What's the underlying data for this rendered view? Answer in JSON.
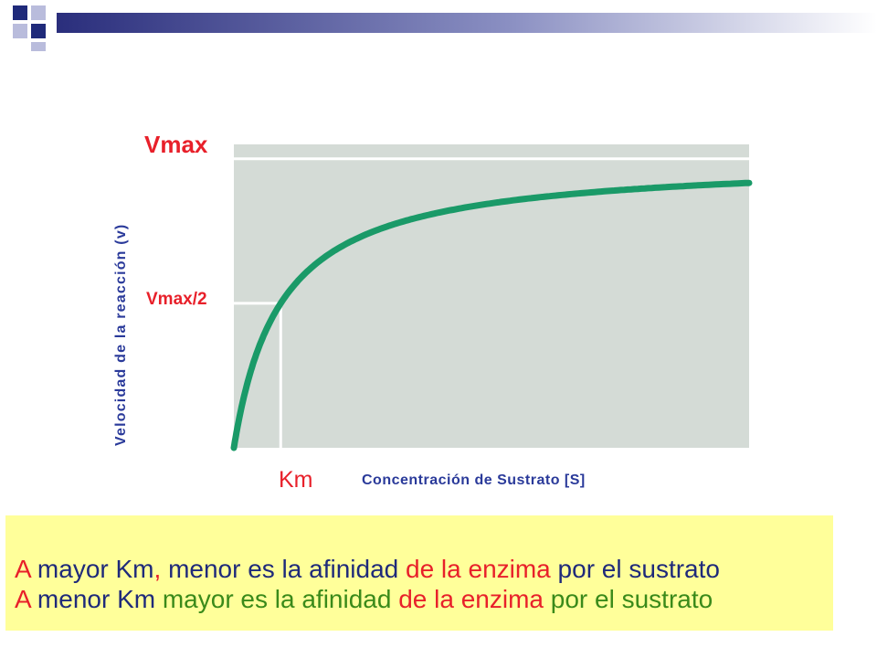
{
  "chart_data": {
    "type": "line",
    "title": "",
    "xlabel": "Concentración de Sustrato [S]",
    "ylabel": "Velocidad de la reacción (v)",
    "y_markers": [
      {
        "label": "Vmax",
        "value": 1.0
      },
      {
        "label": "Vmax/2",
        "value": 0.5
      }
    ],
    "x_markers": [
      {
        "label": "Km",
        "value": 1.0
      }
    ],
    "curve": {
      "equation": "v = Vmax*[S]/(Km+[S])",
      "Vmax": 1.0,
      "Km": 1.0
    },
    "xlim": [
      0,
      11
    ],
    "ylim": [
      0,
      1.05
    ],
    "colors": {
      "curve": "#1a9a68",
      "plot_bg": "#d4dbd6",
      "markers": "#ffffff"
    }
  },
  "note": {
    "lines": [
      [
        {
          "text": "A ",
          "color": "red"
        },
        {
          "text": "mayor Km",
          "color": "navy"
        },
        {
          "text": ", ",
          "color": "red"
        },
        {
          "text": "menor es la afinidad ",
          "color": "navy"
        },
        {
          "text": "de la enzima ",
          "color": "red"
        },
        {
          "text": "por el sustrato",
          "color": "navy"
        }
      ],
      [
        {
          "text": "A ",
          "color": "red"
        },
        {
          "text": "menor Km ",
          "color": "navy"
        },
        {
          "text": "mayor es la afinidad ",
          "color": "green"
        },
        {
          "text": "de la enzima ",
          "color": "red"
        },
        {
          "text": "por el sustrato",
          "color": "green"
        }
      ]
    ]
  }
}
